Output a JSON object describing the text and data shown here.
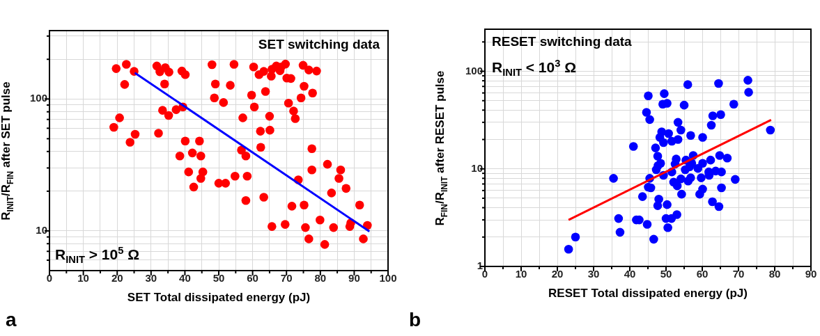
{
  "chart_data": [
    {
      "type": "scatter",
      "title": "SET switching data",
      "xlabel": "SET Total dissipated energy (pJ)",
      "ylabel": "R$_{INIT}$/R$_{FIN}$ after SET pulse",
      "annotations": [
        "R$_{INIT}$ > 10$^{5}$ Ω",
        "a"
      ],
      "log": "y",
      "grid": true,
      "legend": false,
      "marker": "circle",
      "xlim": [
        0,
        100
      ],
      "xticks": [
        0,
        {
          "value": 5,
          "label": null
        },
        10,
        {
          "value": 15,
          "label": null
        },
        20,
        {
          "value": 25,
          "label": null
        },
        30,
        {
          "value": 35,
          "label": null
        },
        40,
        {
          "value": 45,
          "label": null
        },
        50,
        {
          "value": 55,
          "label": null
        },
        60,
        {
          "value": 65,
          "label": null
        },
        70,
        {
          "value": 75,
          "label": null
        },
        80,
        {
          "value": 85,
          "label": null
        },
        90,
        {
          "value": 95,
          "label": null
        },
        100
      ],
      "ylim": [
        5,
        330
      ],
      "yticks": [
        {
          "value": 6,
          "label": null
        },
        {
          "value": 7,
          "label": null
        },
        {
          "value": 8,
          "label": null
        },
        {
          "value": 9,
          "label": null
        },
        10,
        {
          "value": 20,
          "label": null
        },
        {
          "value": 30,
          "label": null
        },
        {
          "value": 40,
          "label": null
        },
        {
          "value": 50,
          "label": null
        },
        {
          "value": 60,
          "label": null
        },
        {
          "value": 70,
          "label": null
        },
        {
          "value": 80,
          "label": null
        },
        {
          "value": 90,
          "label": null
        },
        100,
        {
          "value": 200,
          "label": null
        },
        {
          "value": 300,
          "label": null
        }
      ],
      "series": [
        {
          "color": "#ff0000",
          "x": [
            19.7,
            22.7,
            25.0,
            22.2,
            20.7,
            19.0,
            25.3,
            23.8,
            31.7,
            32.6,
            34.2,
            35.3,
            34.0,
            39.1,
            40.1,
            33.4,
            35.2,
            37.4,
            39.4,
            32.2,
            40.1,
            44.3,
            42.2,
            44.7,
            38.5,
            41.1,
            45.3,
            44.7,
            42.6,
            48.0,
            49.0,
            48.7,
            51.4,
            50.0,
            52.0,
            54.5,
            53.4,
            60.3,
            61.9,
            63.3,
            65.5,
            65.7,
            67.0,
            68.4,
            69.7,
            68.1,
            70.1,
            71.3,
            63.8,
            59.7,
            60.5,
            57.1,
            65.0,
            62.3,
            65.1,
            62.4,
            56.7,
            58.0,
            70.6,
            72.1,
            72.6,
            74.3,
            75.2,
            77.7,
            74.9,
            76.6,
            78.9,
            77.5,
            77.5,
            82.1,
            86.0,
            85.5,
            87.6,
            83.3,
            54.8,
            58.4,
            73.5,
            58.0,
            63.3,
            71.6,
            75.2,
            91.6,
            65.7,
            69.6,
            75.6,
            79.9,
            83.9,
            88.7,
            89.0,
            93.9,
            76.6,
            81.3,
            92.7
          ],
          "values": [
            170,
            183,
            162,
            129,
            72,
            61,
            54,
            47,
            178,
            161,
            173,
            160,
            130,
            163,
            153,
            82,
            75,
            83,
            87,
            55,
            48,
            48,
            39,
            37,
            37,
            28,
            28,
            25,
            21.5,
            182,
            130,
            102,
            94,
            23,
            23,
            183,
            127,
            175,
            153,
            162,
            149,
            168,
            178,
            175,
            184,
            164,
            144,
            143,
            114,
            107,
            87,
            72,
            74,
            57,
            58,
            43,
            41,
            37,
            93,
            81,
            71,
            102,
            125,
            111,
            180,
            166,
            163,
            42,
            29,
            32,
            29,
            25,
            21,
            19.4,
            26,
            26,
            24.4,
            17,
            18,
            15.4,
            15.7,
            15.7,
            10.8,
            11.2,
            10.6,
            12.1,
            10.6,
            10.8,
            11.5,
            11.0,
            8.7,
            7.9,
            8.7
          ]
        },
        {
          "type": "line",
          "color": "#0000ff",
          "marker": "none",
          "line_style": "solid",
          "x": [
            25.2,
            94.5
          ],
          "values": [
            158,
            9.9
          ]
        }
      ]
    },
    {
      "type": "scatter",
      "title": "RESET switching data",
      "xlabel": "RESET Total dissipated energy (pJ)",
      "ylabel": "R$_{FIN}$/R$_{INIT}$ after RESET pulse",
      "annotations": [
        "R$_{INIT}$ < 10$^{3}$ Ω",
        "b"
      ],
      "log": "y",
      "grid": true,
      "legend": false,
      "marker": "circle",
      "xlim": [
        0,
        90
      ],
      "xticks": [
        0,
        {
          "value": 5,
          "label": null
        },
        10,
        {
          "value": 15,
          "label": null
        },
        20,
        {
          "value": 25,
          "label": null
        },
        30,
        {
          "value": 35,
          "label": null
        },
        40,
        {
          "value": 45,
          "label": null
        },
        50,
        {
          "value": 55,
          "label": null
        },
        60,
        {
          "value": 65,
          "label": null
        },
        70,
        {
          "value": 75,
          "label": null
        },
        80,
        {
          "value": 85,
          "label": null
        },
        90
      ],
      "ylim": [
        1,
        270
      ],
      "yticks": [
        1,
        {
          "value": 2,
          "label": null
        },
        {
          "value": 3,
          "label": null
        },
        {
          "value": 4,
          "label": null
        },
        {
          "value": 5,
          "label": null
        },
        {
          "value": 6,
          "label": null
        },
        {
          "value": 7,
          "label": null
        },
        {
          "value": 8,
          "label": null
        },
        {
          "value": 9,
          "label": null
        },
        10,
        {
          "value": 20,
          "label": null
        },
        {
          "value": 30,
          "label": null
        },
        {
          "value": 40,
          "label": null
        },
        {
          "value": 50,
          "label": null
        },
        {
          "value": 60,
          "label": null
        },
        {
          "value": 70,
          "label": null
        },
        {
          "value": 80,
          "label": null
        },
        {
          "value": 90,
          "label": null
        },
        100,
        {
          "value": 200,
          "label": null
        }
      ],
      "series": [
        {
          "color": "#0000ff",
          "x": [
            23.1,
            25.0,
            35.5,
            36.9,
            37.3,
            41.0,
            41.8,
            42.6,
            43.5,
            44.8,
            45.1,
            44.6,
            45.5,
            45.5,
            45.1,
            45.8,
            49.5,
            49.1,
            50.3,
            56.0,
            55.0,
            64.5,
            72.6,
            72.8,
            68.7,
            65.1,
            62.9,
            62.5,
            53.3,
            54.1,
            48.8,
            50.7,
            56.8,
            60.1,
            48.3,
            51.6,
            53.3,
            49.3,
            47.1,
            47.7,
            48.5,
            47.3,
            49.3,
            47.8,
            48.0,
            47.7,
            50.3,
            50.0,
            51.5,
            53.0,
            50.5,
            46.6,
            52.8,
            55.5,
            57.5,
            52.5,
            57.1,
            56.5,
            55.3,
            58.8,
            60.1,
            62.3,
            64.8,
            66.9,
            51.6,
            61.8,
            63.7,
            65.3,
            61.9,
            54.1,
            56.8,
            56.1,
            59.7,
            69.1,
            52.1,
            53.1,
            60.1,
            59.3,
            65.3,
            54.3,
            62.8,
            64.6,
            78.8
          ],
          "values": [
            1.5,
            2.0,
            8.0,
            3.1,
            2.24,
            17,
            3.0,
            3.0,
            5.2,
            2.7,
            56,
            38,
            32,
            8.0,
            6.5,
            6.4,
            59,
            46,
            47,
            73,
            45,
            75,
            81,
            61,
            46,
            36,
            35,
            28,
            30,
            25,
            24,
            23,
            22,
            21,
            21,
            19.2,
            20,
            18.6,
            16.4,
            13.5,
            11.4,
            9.8,
            8.6,
            10.8,
            4.9,
            4.2,
            4.3,
            3.1,
            3.1,
            3.4,
            2.5,
            1.9,
            12.6,
            12.3,
            13.7,
            11.2,
            11.4,
            10.5,
            9.8,
            10.1,
            11.4,
            12.3,
            13.7,
            12.9,
            9.3,
            9.3,
            9.5,
            9.3,
            8.6,
            7.9,
            8.1,
            7.5,
            8.1,
            7.8,
            7.3,
            6.7,
            6.2,
            5.5,
            6.4,
            5.5,
            4.6,
            4.1,
            25
          ]
        },
        {
          "type": "line",
          "color": "#ff0000",
          "marker": "none",
          "line_style": "solid",
          "x": [
            23.1,
            79.0
          ],
          "values": [
            3.0,
            31.8
          ]
        }
      ]
    }
  ]
}
